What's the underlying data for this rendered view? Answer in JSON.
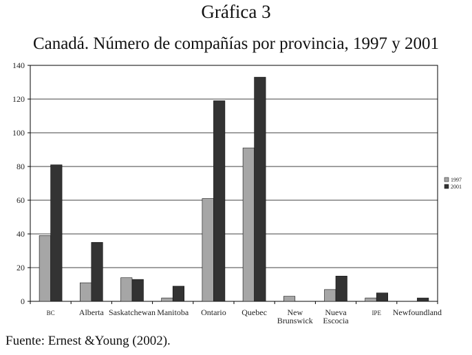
{
  "chart_data": {
    "type": "bar",
    "title": "Gráfica 3",
    "subtitle": "Canadá. Número de compañías por provincia, 1997 y 2001",
    "categories": [
      {
        "lines": [
          "BC"
        ]
      },
      {
        "lines": [
          "Alberta"
        ]
      },
      {
        "lines": [
          "Saskatchewan"
        ]
      },
      {
        "lines": [
          "Manitoba"
        ]
      },
      {
        "lines": [
          "Ontario"
        ]
      },
      {
        "lines": [
          "Quebec"
        ]
      },
      {
        "lines": [
          "New",
          "Brunswick"
        ]
      },
      {
        "lines": [
          "Nueva",
          "Escocia"
        ]
      },
      {
        "lines": [
          "IPE"
        ]
      },
      {
        "lines": [
          "Newfoundland"
        ]
      }
    ],
    "series": [
      {
        "name": "1997",
        "color": "#a6a6a6",
        "values": [
          39,
          11,
          14,
          2,
          61,
          91,
          3,
          7,
          2,
          0
        ]
      },
      {
        "name": "2001",
        "color": "#333333",
        "values": [
          81,
          35,
          13,
          9,
          119,
          133,
          0,
          15,
          5,
          2
        ]
      }
    ],
    "ylim": [
      0,
      140
    ],
    "yticks": [
      0,
      20,
      40,
      60,
      80,
      100,
      120,
      140
    ],
    "grid": true,
    "legend": "right"
  },
  "source": "Fuente: Ernest &Young (2002)."
}
